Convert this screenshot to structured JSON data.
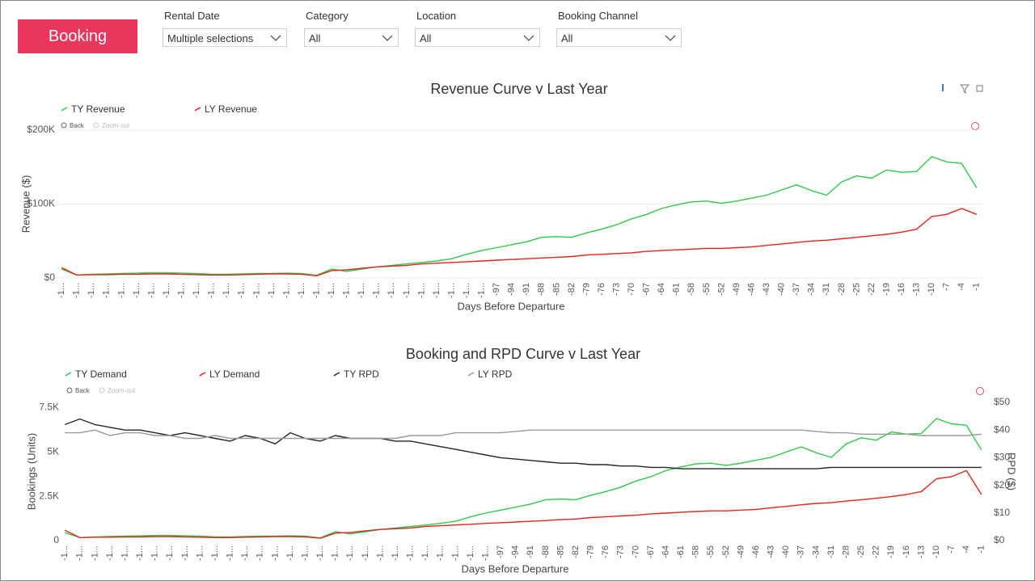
{
  "header": {
    "title": "Booking",
    "filters": [
      {
        "label": "Rental Date",
        "value": "Multiple selections"
      },
      {
        "label": "Category",
        "value": "All"
      },
      {
        "label": "Location",
        "value": "All"
      },
      {
        "label": "Booking Channel",
        "value": "All"
      }
    ]
  },
  "chart_data": [
    {
      "type": "line",
      "title": "Revenue Curve v Last Year",
      "xlabel": "Days Before Departure",
      "ylabel": "Revenue ($)",
      "controls": [
        "Back",
        "Zoom-out"
      ],
      "grid": true,
      "x": [
        -184,
        -181,
        -178,
        -175,
        -172,
        -169,
        -166,
        -163,
        -160,
        -157,
        -154,
        -151,
        -148,
        -145,
        -142,
        -139,
        -136,
        -133,
        -130,
        -127,
        -124,
        -121,
        -118,
        -115,
        -112,
        -109,
        -106,
        -103,
        -100,
        -97,
        -94,
        -91,
        -88,
        -85,
        -82,
        -79,
        -76,
        -73,
        -70,
        -67,
        -64,
        -61,
        -58,
        -55,
        -52,
        -49,
        -46,
        -43,
        -40,
        -37,
        -34,
        -31,
        -28,
        -25,
        -22,
        -19,
        -16,
        -13,
        -10,
        -7,
        -4,
        -1
      ],
      "xlim": [
        -185,
        0
      ],
      "xticks": [
        {
          "value": -184,
          "label": "-1..."
        },
        {
          "value": -181,
          "label": "-1..."
        },
        {
          "value": -178,
          "label": "-1..."
        },
        {
          "value": -175,
          "label": "-1..."
        },
        {
          "value": -172,
          "label": "-1..."
        },
        {
          "value": -169,
          "label": "-1..."
        },
        {
          "value": -166,
          "label": "-1..."
        },
        {
          "value": -163,
          "label": "-1..."
        },
        {
          "value": -160,
          "label": "-1..."
        },
        {
          "value": -157,
          "label": "-1..."
        },
        {
          "value": -154,
          "label": "-1..."
        },
        {
          "value": -151,
          "label": "-1..."
        },
        {
          "value": -148,
          "label": "-1..."
        },
        {
          "value": -145,
          "label": "-1..."
        },
        {
          "value": -142,
          "label": "-1..."
        },
        {
          "value": -139,
          "label": "-1..."
        },
        {
          "value": -136,
          "label": "-1..."
        },
        {
          "value": -133,
          "label": "-1..."
        },
        {
          "value": -130,
          "label": "-1..."
        },
        {
          "value": -127,
          "label": "-1..."
        },
        {
          "value": -124,
          "label": "-1..."
        },
        {
          "value": -121,
          "label": "-1..."
        },
        {
          "value": -118,
          "label": "-1..."
        },
        {
          "value": -115,
          "label": "-1..."
        },
        {
          "value": -112,
          "label": "-1..."
        },
        {
          "value": -109,
          "label": "-1..."
        },
        {
          "value": -106,
          "label": "-1..."
        },
        {
          "value": -103,
          "label": "-1..."
        },
        {
          "value": -100,
          "label": "-1..."
        },
        -97,
        -94,
        -91,
        -88,
        -85,
        -82,
        -79,
        -76,
        -73,
        -70,
        -67,
        -64,
        -61,
        -58,
        -55,
        -52,
        -49,
        -46,
        -43,
        -40,
        -37,
        -34,
        -31,
        -28,
        -25,
        -22,
        -19,
        -16,
        -13,
        -10,
        -7,
        -4,
        -1
      ],
      "ylim": [
        0,
        200000
      ],
      "yticks": [
        {
          "value": 0,
          "label": "$0"
        },
        {
          "value": 100000,
          "label": "$100K"
        },
        {
          "value": 200000,
          "label": "$200K"
        }
      ],
      "series": [
        {
          "name": "TY Revenue",
          "color": "#2ec84a",
          "values": [
            12000,
            4000,
            5000,
            5500,
            6000,
            6500,
            7000,
            7000,
            6500,
            6000,
            5000,
            5000,
            5500,
            6000,
            6000,
            6500,
            6000,
            3500,
            12000,
            9000,
            12000,
            15000,
            17000,
            19000,
            21000,
            23000,
            26000,
            32000,
            37000,
            41000,
            45000,
            49000,
            55000,
            56000,
            55000,
            61000,
            66000,
            72000,
            80000,
            86000,
            94000,
            99000,
            103000,
            104000,
            101000,
            104000,
            108000,
            112000,
            119000,
            126000,
            118000,
            112000,
            130000,
            138000,
            135000,
            146000,
            143000,
            144000,
            164000,
            157000,
            155000,
            122000
          ]
        },
        {
          "name": "LY Revenue",
          "color": "#e3241c",
          "values": [
            14000,
            4000,
            4500,
            4500,
            5000,
            5000,
            5500,
            5500,
            5000,
            4500,
            4000,
            4000,
            4500,
            5000,
            5500,
            5500,
            5000,
            3000,
            10000,
            11000,
            13000,
            15000,
            16000,
            17000,
            19000,
            20000,
            21000,
            22000,
            23000,
            24000,
            25000,
            26000,
            27000,
            28000,
            29000,
            31000,
            32000,
            33000,
            34000,
            36000,
            37000,
            38000,
            39000,
            40000,
            40000,
            41000,
            42000,
            44000,
            46000,
            48000,
            50000,
            51000,
            53000,
            55000,
            57000,
            59000,
            62000,
            66000,
            83000,
            86000,
            94000,
            86000
          ]
        }
      ]
    },
    {
      "type": "line",
      "title": "Booking and RPD Curve v Last Year",
      "xlabel": "Days Before Departure",
      "ylabel": "Bookings (Units)",
      "y2label": "RPD ($)",
      "controls": [
        "Back",
        "Zoom-out"
      ],
      "grid": false,
      "x": [
        -184,
        -181,
        -178,
        -175,
        -172,
        -169,
        -166,
        -163,
        -160,
        -157,
        -154,
        -151,
        -148,
        -145,
        -142,
        -139,
        -136,
        -133,
        -130,
        -127,
        -124,
        -121,
        -118,
        -115,
        -112,
        -109,
        -106,
        -103,
        -100,
        -97,
        -94,
        -91,
        -88,
        -85,
        -82,
        -79,
        -76,
        -73,
        -70,
        -67,
        -64,
        -61,
        -58,
        -55,
        -52,
        -49,
        -46,
        -43,
        -40,
        -37,
        -34,
        -31,
        -28,
        -25,
        -22,
        -19,
        -16,
        -13,
        -10,
        -7,
        -4,
        -1
      ],
      "xlim": [
        -185,
        0
      ],
      "xticks": [
        {
          "value": -184,
          "label": "-1..."
        },
        {
          "value": -181,
          "label": "-1..."
        },
        {
          "value": -178,
          "label": "-1..."
        },
        {
          "value": -175,
          "label": "-1..."
        },
        {
          "value": -172,
          "label": "-1..."
        },
        {
          "value": -169,
          "label": "-1..."
        },
        {
          "value": -166,
          "label": "-1..."
        },
        {
          "value": -163,
          "label": "-1..."
        },
        {
          "value": -160,
          "label": "-1..."
        },
        {
          "value": -157,
          "label": "-1..."
        },
        {
          "value": -154,
          "label": "-1..."
        },
        {
          "value": -151,
          "label": "-1..."
        },
        {
          "value": -148,
          "label": "-1..."
        },
        {
          "value": -145,
          "label": "-1..."
        },
        {
          "value": -142,
          "label": "-1..."
        },
        {
          "value": -139,
          "label": "-1..."
        },
        {
          "value": -136,
          "label": "-1..."
        },
        {
          "value": -133,
          "label": "-1..."
        },
        {
          "value": -130,
          "label": "-1..."
        },
        {
          "value": -127,
          "label": "-1..."
        },
        {
          "value": -124,
          "label": "-1..."
        },
        {
          "value": -121,
          "label": "-1..."
        },
        {
          "value": -118,
          "label": "-1..."
        },
        {
          "value": -115,
          "label": "-1..."
        },
        {
          "value": -112,
          "label": "-1..."
        },
        {
          "value": -109,
          "label": "-1..."
        },
        {
          "value": -106,
          "label": "-1..."
        },
        {
          "value": -103,
          "label": "-1..."
        },
        {
          "value": -100,
          "label": "-1..."
        },
        -97,
        -94,
        -91,
        -88,
        -85,
        -82,
        -79,
        -76,
        -73,
        -70,
        -67,
        -64,
        -61,
        -58,
        -55,
        -52,
        -49,
        -46,
        -43,
        -40,
        -37,
        -34,
        -31,
        -28,
        -25,
        -22,
        -19,
        -16,
        -13,
        -10,
        -7,
        -4,
        -1
      ],
      "ylim": [
        0,
        7800
      ],
      "yticks": [
        0,
        {
          "value": 2500,
          "label": "2.5K"
        },
        {
          "value": 5000,
          "label": "5K"
        },
        {
          "value": 7500,
          "label": "7.5K"
        }
      ],
      "y2lim": [
        0,
        50
      ],
      "y2ticks": [
        {
          "value": 0,
          "label": "$0"
        },
        {
          "value": 10,
          "label": "$10"
        },
        {
          "value": 20,
          "label": "$20"
        },
        {
          "value": 30,
          "label": "$30"
        },
        {
          "value": 40,
          "label": "$40"
        },
        {
          "value": 50,
          "label": "$50"
        }
      ],
      "series": [
        {
          "name": "TY Demand",
          "color": "#2ec84a",
          "values": [
            450,
            170,
            210,
            230,
            250,
            270,
            290,
            290,
            270,
            250,
            210,
            210,
            230,
            250,
            250,
            270,
            250,
            150,
            500,
            380,
            500,
            630,
            710,
            800,
            880,
            970,
            1090,
            1340,
            1550,
            1720,
            1890,
            2060,
            2310,
            2350,
            2310,
            2560,
            2770,
            3020,
            3360,
            3610,
            3950,
            4160,
            4330,
            4370,
            4240,
            4370,
            4540,
            4700,
            5000,
            5290,
            4960,
            4700,
            5460,
            5800,
            5670,
            6130,
            6010,
            6050,
            6890,
            6590,
            6510,
            5120
          ]
        },
        {
          "name": "LY Demand",
          "color": "#e3241c",
          "values": [
            590,
            170,
            190,
            190,
            210,
            210,
            230,
            230,
            210,
            190,
            170,
            170,
            190,
            210,
            230,
            230,
            210,
            130,
            420,
            460,
            550,
            630,
            670,
            710,
            800,
            840,
            880,
            920,
            970,
            1010,
            1050,
            1090,
            1130,
            1180,
            1220,
            1300,
            1340,
            1390,
            1430,
            1510,
            1550,
            1600,
            1640,
            1680,
            1680,
            1720,
            1760,
            1850,
            1930,
            2020,
            2100,
            2140,
            2230,
            2310,
            2390,
            2480,
            2600,
            2770,
            3490,
            3610,
            3950,
            2600
          ]
        },
        {
          "name": "TY RPD",
          "color": "#252525",
          "axis": "y2",
          "values": [
            42,
            44,
            42,
            41,
            40,
            40,
            39,
            38,
            39,
            38,
            37,
            36,
            38,
            37,
            35,
            39,
            37,
            36,
            38,
            37,
            37,
            37,
            36,
            36,
            35,
            34,
            33,
            32,
            31,
            30,
            29.5,
            29,
            28.5,
            28,
            28,
            27.5,
            27.5,
            27,
            27,
            26.5,
            26.5,
            26,
            26,
            26,
            26,
            26,
            26,
            26,
            26,
            26,
            26,
            26.5,
            26.5,
            26.5,
            26.5,
            26.5,
            26.5,
            26.5,
            26.5,
            26.5,
            26.5,
            26.5
          ]
        },
        {
          "name": "LY RPD",
          "color": "#9a9a9a",
          "axis": "y2",
          "values": [
            39,
            39,
            40,
            38,
            39,
            39,
            38,
            38,
            37,
            37,
            38,
            37,
            37,
            37,
            37,
            37,
            37,
            37,
            37,
            37,
            37,
            37,
            37,
            38,
            38,
            38,
            39,
            39,
            39,
            39,
            39.5,
            40,
            40,
            40,
            40,
            40,
            40,
            40,
            40,
            40,
            40,
            40,
            40,
            40,
            40,
            40,
            40,
            40,
            40,
            40,
            39.5,
            39,
            39,
            38.5,
            38.5,
            38.5,
            38.5,
            38,
            38,
            38,
            38,
            38.5
          ]
        }
      ]
    }
  ]
}
